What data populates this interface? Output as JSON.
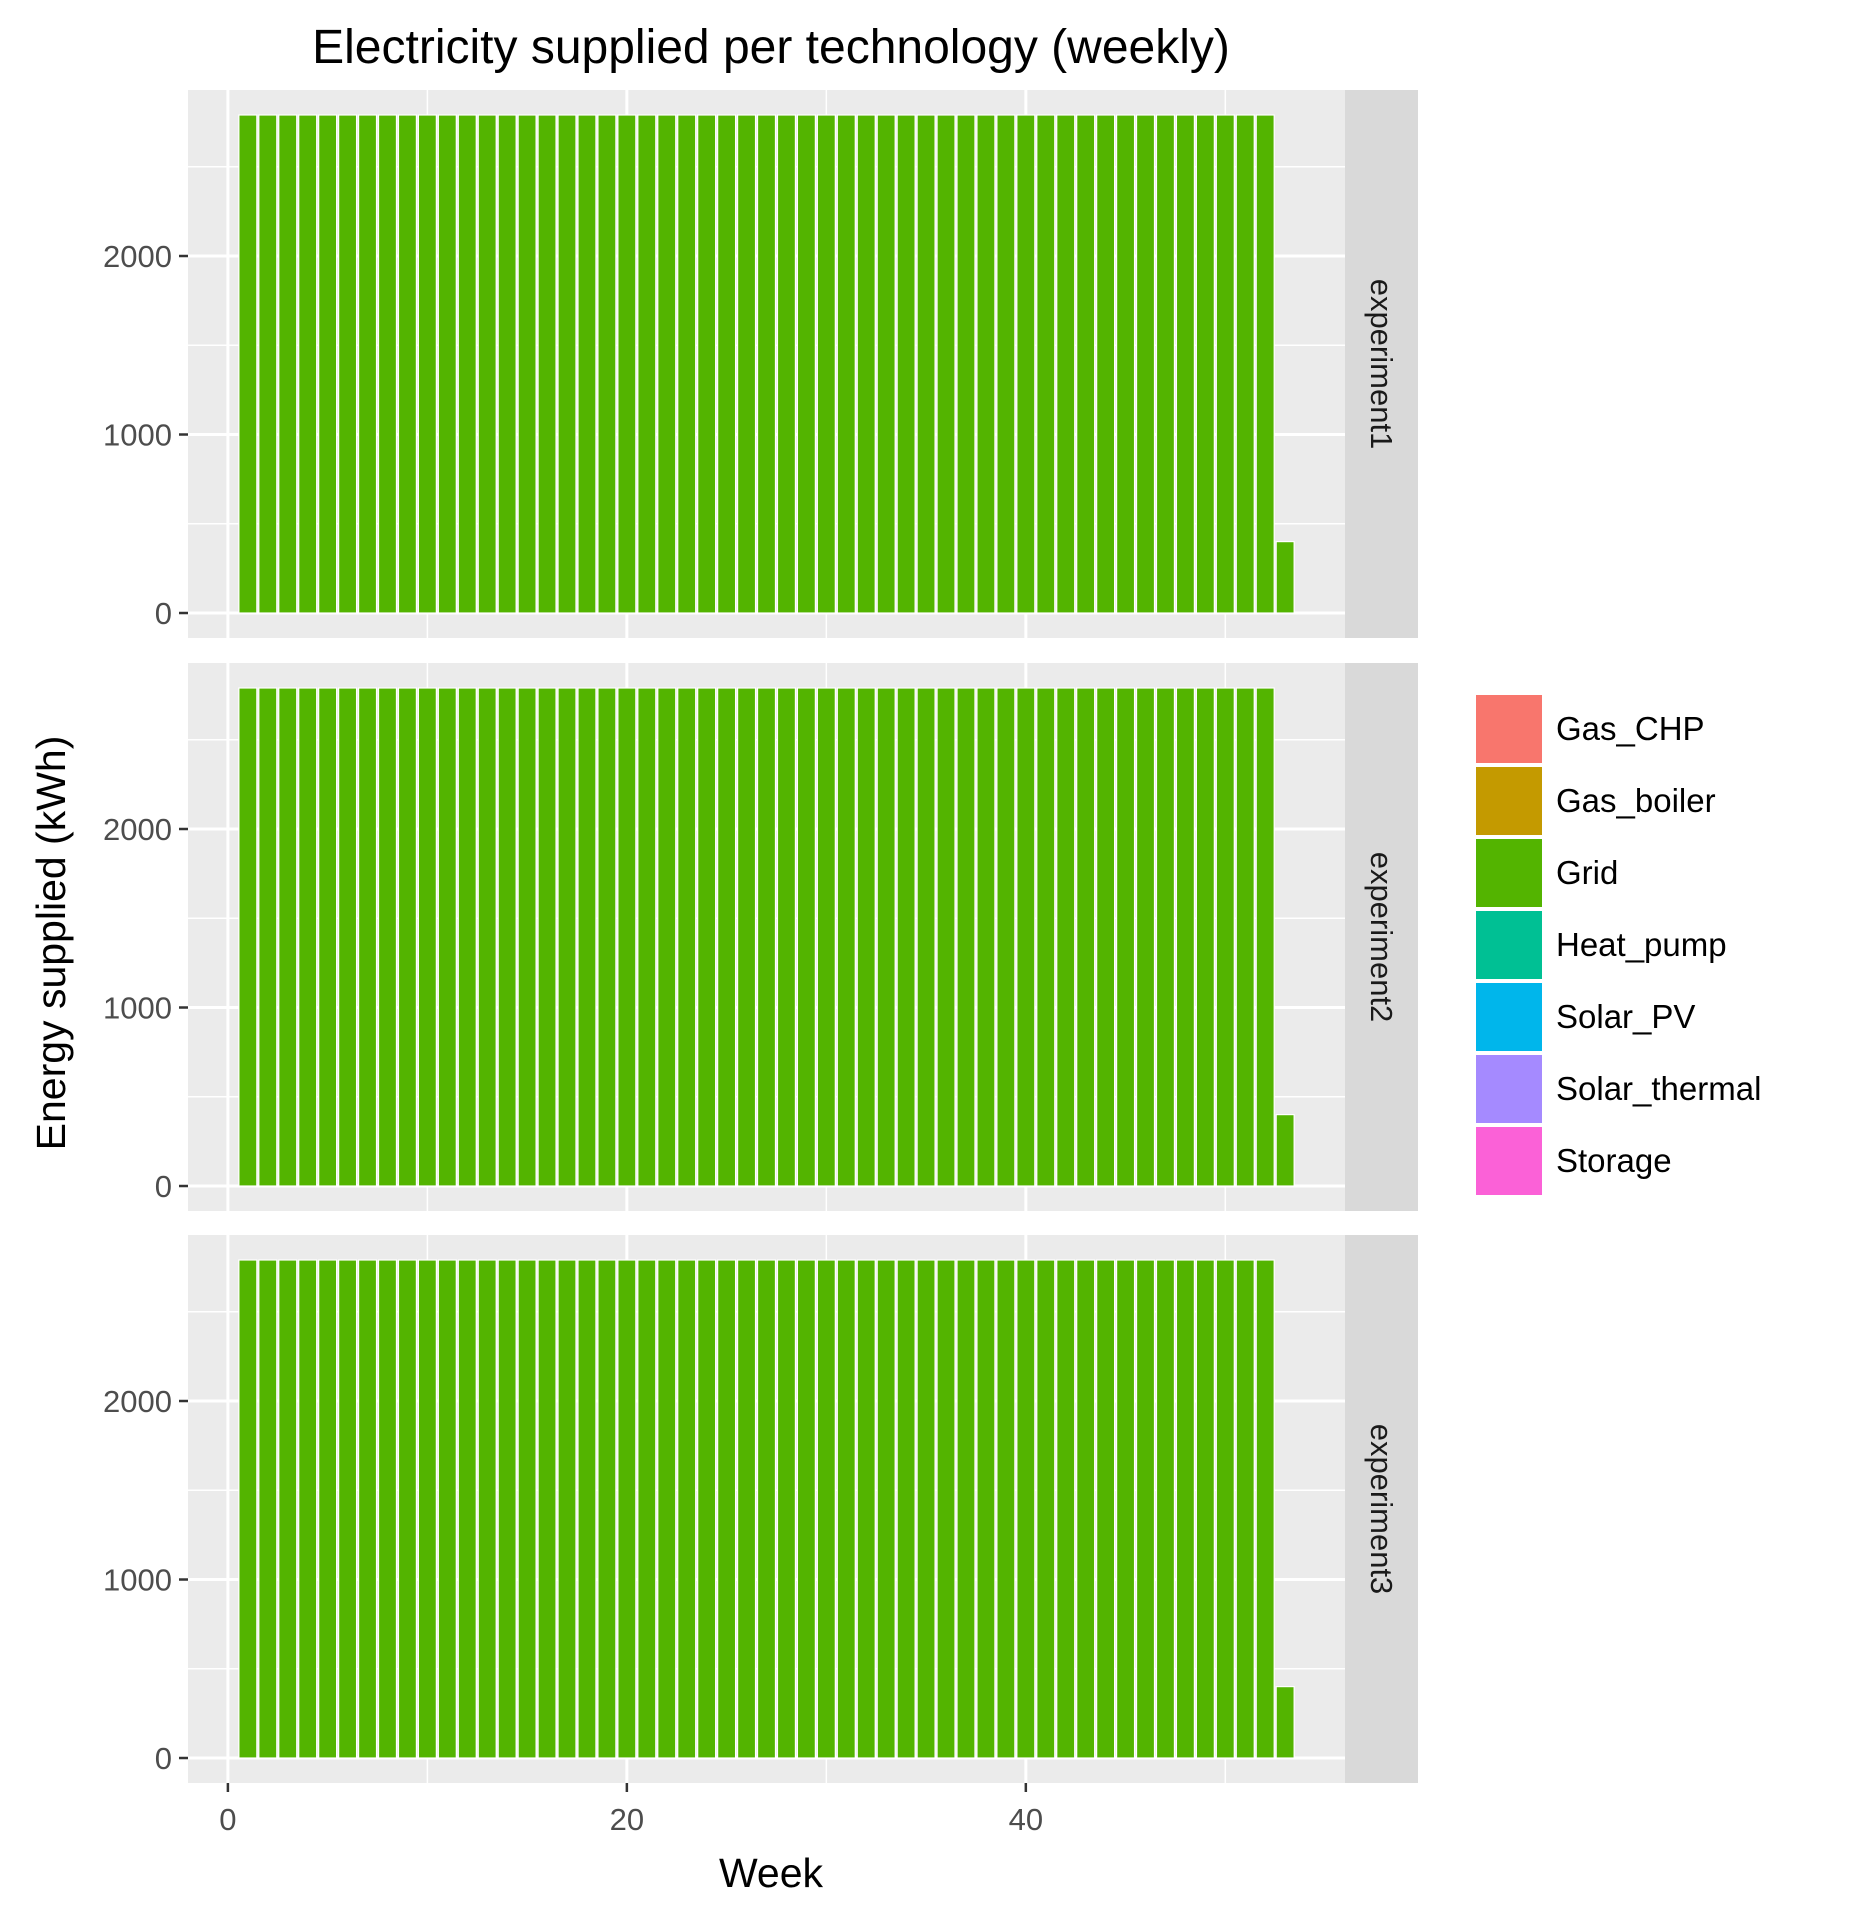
{
  "chart_data": {
    "type": "bar",
    "title": "Electricity supplied per technology (weekly)",
    "xlabel": "Week",
    "ylabel": "Energy supplied (kWh)",
    "xlim": [
      -2,
      56
    ],
    "ylim": [
      -140,
      2930
    ],
    "x_ticks": [
      0,
      20,
      40
    ],
    "y_ticks": [
      0,
      1000,
      2000
    ],
    "x_minor": [
      10,
      30,
      50
    ],
    "y_minor": [
      500,
      1500,
      2500
    ],
    "grid": true,
    "legend_position": "right",
    "legend": [
      {
        "name": "Gas_CHP",
        "color": "#F8766D"
      },
      {
        "name": "Gas_boiler",
        "color": "#C49A00"
      },
      {
        "name": "Grid",
        "color": "#53B400"
      },
      {
        "name": "Heat_pump",
        "color": "#00C094"
      },
      {
        "name": "Solar_PV",
        "color": "#00B6EB"
      },
      {
        "name": "Solar_thermal",
        "color": "#A58AFF"
      },
      {
        "name": "Storage",
        "color": "#FB61D7"
      }
    ],
    "panels": [
      {
        "label": "experiment1",
        "series": [
          {
            "name": "Grid",
            "color": "#53B400",
            "x": [
              1,
              2,
              3,
              4,
              5,
              6,
              7,
              8,
              9,
              10,
              11,
              12,
              13,
              14,
              15,
              16,
              17,
              18,
              19,
              20,
              21,
              22,
              23,
              24,
              25,
              26,
              27,
              28,
              29,
              30,
              31,
              32,
              33,
              34,
              35,
              36,
              37,
              38,
              39,
              40,
              41,
              42,
              43,
              44,
              45,
              46,
              47,
              48,
              49,
              50,
              51,
              52,
              53
            ],
            "values": [
              2790,
              2790,
              2790,
              2790,
              2790,
              2790,
              2790,
              2790,
              2790,
              2790,
              2790,
              2790,
              2790,
              2790,
              2790,
              2790,
              2790,
              2790,
              2790,
              2790,
              2790,
              2790,
              2790,
              2790,
              2790,
              2790,
              2790,
              2790,
              2790,
              2790,
              2790,
              2790,
              2790,
              2790,
              2790,
              2790,
              2790,
              2790,
              2790,
              2790,
              2790,
              2790,
              2790,
              2790,
              2790,
              2790,
              2790,
              2790,
              2790,
              2790,
              2790,
              2790,
              400
            ]
          }
        ]
      },
      {
        "label": "experiment2",
        "series": [
          {
            "name": "Grid",
            "color": "#53B400",
            "x": [
              1,
              2,
              3,
              4,
              5,
              6,
              7,
              8,
              9,
              10,
              11,
              12,
              13,
              14,
              15,
              16,
              17,
              18,
              19,
              20,
              21,
              22,
              23,
              24,
              25,
              26,
              27,
              28,
              29,
              30,
              31,
              32,
              33,
              34,
              35,
              36,
              37,
              38,
              39,
              40,
              41,
              42,
              43,
              44,
              45,
              46,
              47,
              48,
              49,
              50,
              51,
              52,
              53
            ],
            "values": [
              2790,
              2790,
              2790,
              2790,
              2790,
              2790,
              2790,
              2790,
              2790,
              2790,
              2790,
              2790,
              2790,
              2790,
              2790,
              2790,
              2790,
              2790,
              2790,
              2790,
              2790,
              2790,
              2790,
              2790,
              2790,
              2790,
              2790,
              2790,
              2790,
              2790,
              2790,
              2790,
              2790,
              2790,
              2790,
              2790,
              2790,
              2790,
              2790,
              2790,
              2790,
              2790,
              2790,
              2790,
              2790,
              2790,
              2790,
              2790,
              2790,
              2790,
              2790,
              2790,
              400
            ]
          }
        ]
      },
      {
        "label": "experiment3",
        "series": [
          {
            "name": "Grid",
            "color": "#53B400",
            "x": [
              1,
              2,
              3,
              4,
              5,
              6,
              7,
              8,
              9,
              10,
              11,
              12,
              13,
              14,
              15,
              16,
              17,
              18,
              19,
              20,
              21,
              22,
              23,
              24,
              25,
              26,
              27,
              28,
              29,
              30,
              31,
              32,
              33,
              34,
              35,
              36,
              37,
              38,
              39,
              40,
              41,
              42,
              43,
              44,
              45,
              46,
              47,
              48,
              49,
              50,
              51,
              52,
              53
            ],
            "values": [
              2790,
              2790,
              2790,
              2790,
              2790,
              2790,
              2790,
              2790,
              2790,
              2790,
              2790,
              2790,
              2790,
              2790,
              2790,
              2790,
              2790,
              2790,
              2790,
              2790,
              2790,
              2790,
              2790,
              2790,
              2790,
              2790,
              2790,
              2790,
              2790,
              2790,
              2790,
              2790,
              2790,
              2790,
              2790,
              2790,
              2790,
              2790,
              2790,
              2790,
              2790,
              2790,
              2790,
              2790,
              2790,
              2790,
              2790,
              2790,
              2790,
              2790,
              2790,
              2790,
              400
            ]
          }
        ]
      }
    ]
  }
}
